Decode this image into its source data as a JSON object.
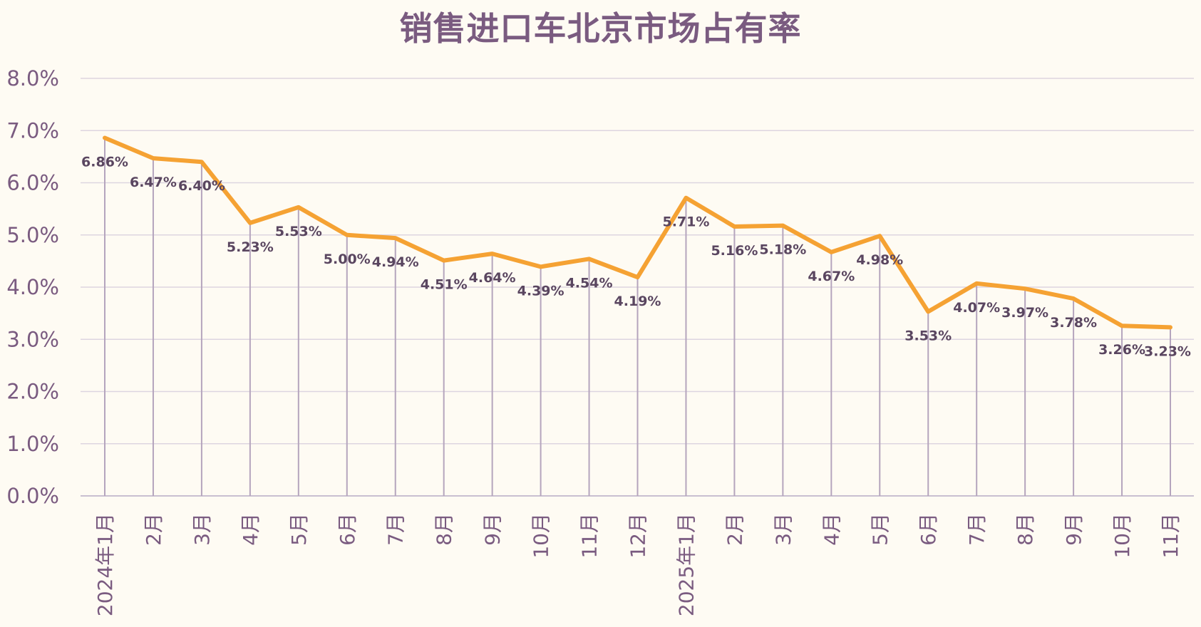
{
  "chart_data": {
    "type": "line",
    "title": "销售进口车北京市场占有率",
    "categories": [
      "2024年1月",
      "2月",
      "3月",
      "4月",
      "5月",
      "6月",
      "7月",
      "8月",
      "9月",
      "10月",
      "11月",
      "12月",
      "2025年1月",
      "2月",
      "3月",
      "4月",
      "5月",
      "6月",
      "7月",
      "8月",
      "9月",
      "10月",
      "11月"
    ],
    "series": [
      {
        "values": [
          6.86,
          6.47,
          6.4,
          5.23,
          5.53,
          5.0,
          4.94,
          4.51,
          4.64,
          4.39,
          4.54,
          4.19,
          5.71,
          5.16,
          5.18,
          4.67,
          4.98,
          3.53,
          4.07,
          3.97,
          3.78,
          3.26,
          3.23
        ],
        "labels": [
          "6.86%",
          "6.47%",
          "6.40%",
          "5.23%",
          "5.53%",
          "5.00%",
          "4.94%",
          "4.51%",
          "4.64%",
          "4.39%",
          "4.54%",
          "4.19%",
          "5.71%",
          "5.16%",
          "5.18%",
          "4.67%",
          "4.98%",
          "3.53%",
          "4.07%",
          "3.97%",
          "3.78%",
          "3.26%",
          "3.23%"
        ],
        "color": "#f5a233"
      }
    ],
    "yticks": [
      0,
      1,
      2,
      3,
      4,
      5,
      6,
      7,
      8
    ],
    "ytick_labels": [
      "0.0%",
      "1.0%",
      "2.0%",
      "3.0%",
      "4.0%",
      "5.0%",
      "6.0%",
      "7.0%",
      "8.0%"
    ],
    "ylim": [
      0,
      8
    ],
    "grid": true,
    "drop_lines": true,
    "colors": {
      "line": "#f5a233",
      "grid": "#ddd5e0",
      "drop_line": "#b5a5bd",
      "axis": "#c9bfd0",
      "text": "#7a5b80",
      "label": "#5a4660",
      "background": "#fefbf3"
    }
  }
}
